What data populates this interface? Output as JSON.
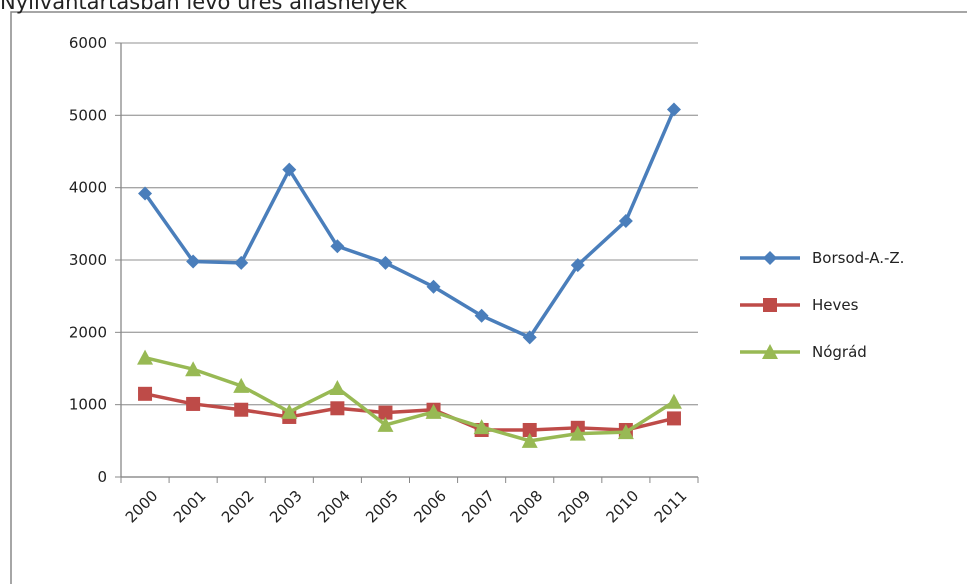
{
  "chart_data": {
    "type": "line",
    "title": "Nyilvántartásban lévő üres álláshelyek",
    "categories": [
      "2000",
      "2001",
      "2002",
      "2003",
      "2004",
      "2005",
      "2006",
      "2007",
      "2008",
      "2009",
      "2010",
      "2011"
    ],
    "series": [
      {
        "name": "Borsod-A.-Z.",
        "color": "#4a7ebb",
        "marker": "diamond",
        "values": [
          3920,
          2980,
          2960,
          4250,
          3190,
          2960,
          2630,
          2230,
          1930,
          2930,
          3540,
          5080
        ]
      },
      {
        "name": "Heves",
        "color": "#be4b48",
        "marker": "square",
        "values": [
          1150,
          1010,
          930,
          830,
          950,
          890,
          930,
          650,
          650,
          680,
          650,
          810
        ]
      },
      {
        "name": "Nógrád",
        "color": "#98b954",
        "marker": "triangle",
        "values": [
          1650,
          1490,
          1260,
          900,
          1230,
          720,
          900,
          690,
          500,
          600,
          620,
          1040
        ]
      }
    ],
    "ylim": [
      0,
      6000
    ],
    "yticks": [
      0,
      1000,
      2000,
      3000,
      4000,
      5000,
      6000
    ],
    "grid": true,
    "legend": "right"
  }
}
